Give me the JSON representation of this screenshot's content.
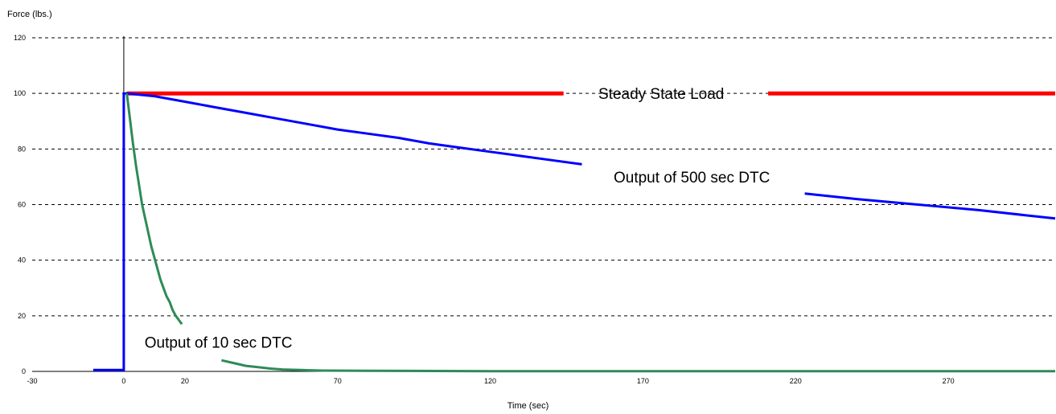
{
  "chart_data": {
    "type": "line",
    "ylabel": "Force (lbs.)",
    "xlabel": "Time (sec)",
    "xlim": [
      -30,
      305
    ],
    "ylim": [
      0,
      120
    ],
    "x_ticks": [
      -30,
      0,
      20,
      70,
      120,
      170,
      220,
      270
    ],
    "y_ticks": [
      0,
      20,
      40,
      60,
      80,
      100,
      120
    ],
    "grid": "horizontal dashed",
    "series": [
      {
        "name": "Steady State Load",
        "color": "#ff0000",
        "segments": [
          {
            "x": [
              1,
              144
            ],
            "y": [
              100,
              100
            ]
          },
          {
            "x": [
              211,
              305
            ],
            "y": [
              100,
              100
            ]
          }
        ]
      },
      {
        "name": "Output of 500 sec DTC",
        "color": "#0000ff",
        "segments": [
          {
            "x": [
              -10,
              -1,
              0,
              0,
              1,
              10,
              20,
              30,
              40,
              50,
              60,
              70,
              80,
              90,
              100,
              110,
              120,
              130,
              140,
              150
            ],
            "y": [
              0.5,
              0.5,
              0.5,
              100,
              100,
              99,
              97,
              95,
              93,
              91,
              89,
              87,
              85.5,
              84,
              82,
              80.5,
              79,
              77.5,
              76,
              74.5
            ]
          },
          {
            "x": [
              223,
              240,
              260,
              280,
              305
            ],
            "y": [
              64,
              62,
              60,
              58,
              55
            ]
          }
        ]
      },
      {
        "name": "Output of 10 sec DTC",
        "color": "#2e8b57",
        "segments": [
          {
            "x": [
              1,
              2,
              3,
              4,
              5,
              6,
              7,
              8,
              9,
              10,
              11,
              12,
              13,
              14,
              15,
              16,
              17,
              18,
              19
            ],
            "y": [
              100,
              91,
              82,
              74,
              67,
              60,
              55,
              50,
              45,
              41,
              37,
              33,
              30,
              27,
              25,
              22,
              20,
              18.5,
              17
            ]
          },
          {
            "x": [
              32,
              36,
              40,
              44,
              48,
              52,
              58,
              65,
              80,
              120,
              180,
              240,
              305
            ],
            "y": [
              4,
              3,
              2,
              1.5,
              1,
              0.7,
              0.5,
              0.3,
              0.2,
              0.1,
              0.1,
              0.1,
              0.1
            ]
          }
        ]
      }
    ],
    "annotations": [
      {
        "text": "Steady State Load",
        "x": 176,
        "y": 100
      },
      {
        "text": "Output of 500 sec DTC",
        "x": 186,
        "y": 70
      },
      {
        "text": "Output of 10 sec DTC",
        "x": 31,
        "y": 10.5
      }
    ]
  }
}
